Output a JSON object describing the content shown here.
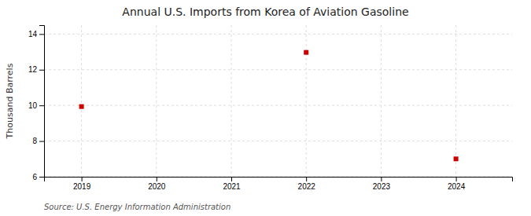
{
  "chart_data": {
    "type": "scatter",
    "title": "Annual U.S. Imports from Korea of Aviation Gasoline",
    "ylabel": "Thousand Barrels",
    "source": "Source: U.S. Energy Information Administration",
    "x": [
      2019,
      2022,
      2024
    ],
    "values": [
      9.934,
      12.972,
      7.0
    ],
    "color": "#cc0000",
    "marker": "square",
    "xlim": [
      2018.5,
      2024.75
    ],
    "ylim": [
      6,
      14.5
    ],
    "xticks": [
      2019,
      2020,
      2021,
      2022,
      2023,
      2024
    ],
    "yticks": [
      6,
      8,
      10,
      12,
      14
    ],
    "grid": true
  }
}
